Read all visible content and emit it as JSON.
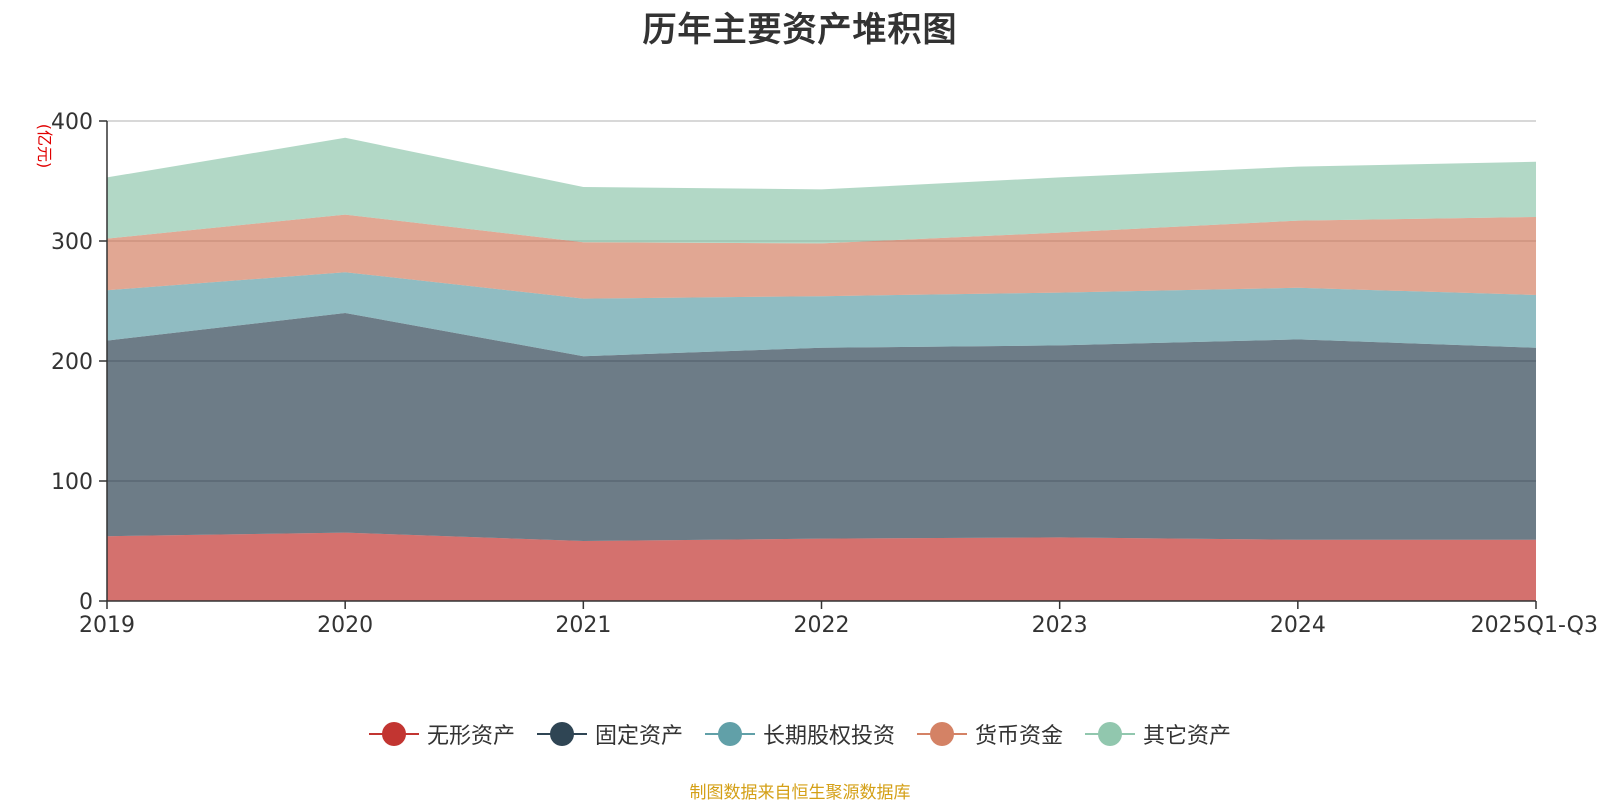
{
  "chart_data": {
    "type": "area",
    "stacked": true,
    "title": "历年主要资产堆积图",
    "unit_label": "(亿元)",
    "categories": [
      "2019",
      "2020",
      "2021",
      "2022",
      "2023",
      "2024",
      "2025Q1-Q3"
    ],
    "ylim": [
      0,
      400
    ],
    "yticks": [
      0,
      100,
      200,
      300,
      400
    ],
    "grid": true,
    "legend_position": "bottom",
    "series": [
      {
        "name": "无形资产",
        "color": "#c23531",
        "values": [
          54,
          57,
          50,
          52,
          53,
          51,
          51
        ]
      },
      {
        "name": "固定资产",
        "color": "#2f4554",
        "values": [
          163,
          183,
          154,
          159,
          160,
          167,
          160
        ]
      },
      {
        "name": "长期股权投资",
        "color": "#61a0a8",
        "values": [
          42,
          34,
          48,
          43,
          44,
          43,
          44
        ]
      },
      {
        "name": "货币资金",
        "color": "#d48265",
        "values": [
          43,
          48,
          47,
          44,
          50,
          56,
          65
        ]
      },
      {
        "name": "其它资产",
        "color": "#91c7ae",
        "values": [
          51,
          64,
          46,
          45,
          46,
          45,
          46
        ]
      }
    ]
  },
  "source_note": "制图数据来自恒生聚源数据库",
  "colors": {
    "title": "#333333",
    "axis": "#333333",
    "grid": "#cccccc",
    "unit_label": "#e00000",
    "source_note": "#d4a017"
  }
}
